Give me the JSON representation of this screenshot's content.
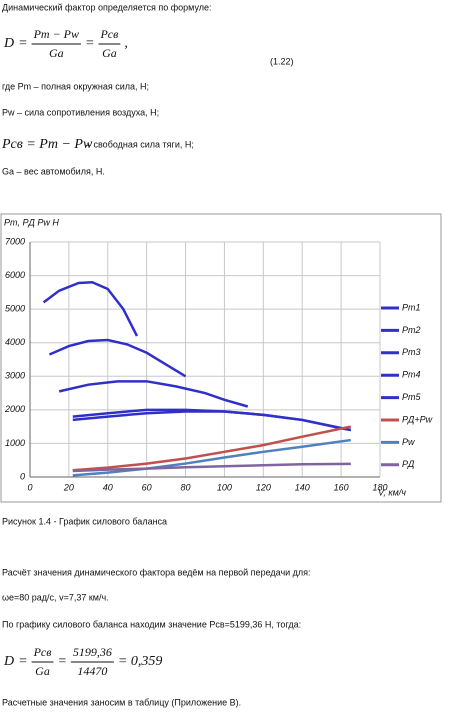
{
  "document": {
    "intro": "Динамический фактор определяется по формуле:",
    "formula1": [
      "D",
      "=",
      {
        "num": "Pm − Pw",
        "den": "Ga"
      },
      "=",
      {
        "num": "Pсв",
        "den": "Ga"
      },
      ","
    ],
    "formula1_number": "(1.22)",
    "def1": "где Pm – полная окружная сила, Н;",
    "def2": "Pw – сила сопротивления воздуха, Н;",
    "def3_formula": "Pсв = Pm − Pw",
    "def3_text": "– свободная сила тяги, Н;",
    "def4": "Gа – вес автомобиля, Н.",
    "caption": "Рисунок 1.4 - График силового баланса",
    "para1": "Расчёт значения динамического фактора ведём на первой передачи для:",
    "para2": "ωе=80 рад/с, v=7,37 км/ч.",
    "para3": "По графику силового баланса находим значение Pсв=5199,36 Н, тогда:",
    "formula2": [
      "D",
      "=",
      {
        "num": "Pсв",
        "den": "Ga"
      },
      "=",
      {
        "num": "5199,36",
        "den": "14470"
      },
      "= 0,359"
    ],
    "para4": "Расчетные значения заносим в таблицу (Приложение В)."
  },
  "chart_data": {
    "type": "line",
    "y_label": "Pm, PД Pw H",
    "x_label": "V, км/ч",
    "xlim": [
      0,
      180
    ],
    "ylim": [
      0,
      7000
    ],
    "xticks": [
      0,
      20,
      40,
      60,
      80,
      100,
      120,
      140,
      160,
      180
    ],
    "yticks": [
      0,
      1000,
      2000,
      3000,
      4000,
      5000,
      6000,
      7000
    ],
    "grid": true,
    "legend": "right",
    "series": [
      {
        "name": "Pm1",
        "color": "#3030c8",
        "x": [
          7,
          15,
          25,
          32,
          40,
          48,
          55
        ],
        "values": [
          5200,
          5550,
          5780,
          5800,
          5600,
          5000,
          4200
        ]
      },
      {
        "name": "Pm2",
        "color": "#3030c8",
        "x": [
          10,
          20,
          30,
          40,
          50,
          60,
          70,
          80
        ],
        "values": [
          3650,
          3900,
          4050,
          4080,
          3950,
          3700,
          3350,
          3000
        ]
      },
      {
        "name": "Pm3",
        "color": "#3030c8",
        "x": [
          15,
          30,
          45,
          60,
          75,
          90,
          100,
          112
        ],
        "values": [
          2550,
          2750,
          2850,
          2850,
          2700,
          2500,
          2300,
          2100
        ]
      },
      {
        "name": "Pm4",
        "color": "#3030c8",
        "x": [
          22,
          40,
          60,
          80,
          100,
          120,
          140,
          160,
          165
        ],
        "values": [
          1800,
          1900,
          2000,
          2000,
          1950,
          1850,
          1700,
          1450,
          1400
        ]
      },
      {
        "name": "Pm5",
        "color": "#3030c8",
        "x": [
          22,
          40,
          60,
          80,
          100,
          120,
          140,
          165
        ],
        "values": [
          1700,
          1800,
          1900,
          1950,
          1950,
          1850,
          1700,
          1400
        ]
      },
      {
        "name": "PД+Pw",
        "color": "#c0504d",
        "x": [
          22,
          40,
          60,
          80,
          100,
          120,
          140,
          165
        ],
        "values": [
          200,
          280,
          400,
          550,
          750,
          950,
          1200,
          1500
        ]
      },
      {
        "name": "Pw",
        "color": "#4f81bd",
        "x": [
          22,
          40,
          60,
          80,
          100,
          120,
          140,
          165
        ],
        "values": [
          50,
          130,
          250,
          400,
          580,
          750,
          900,
          1100
        ]
      },
      {
        "name": "PД",
        "color": "#8064a2",
        "x": [
          22,
          40,
          60,
          80,
          100,
          120,
          140,
          165
        ],
        "values": [
          180,
          220,
          250,
          290,
          320,
          350,
          380,
          390
        ]
      }
    ]
  }
}
